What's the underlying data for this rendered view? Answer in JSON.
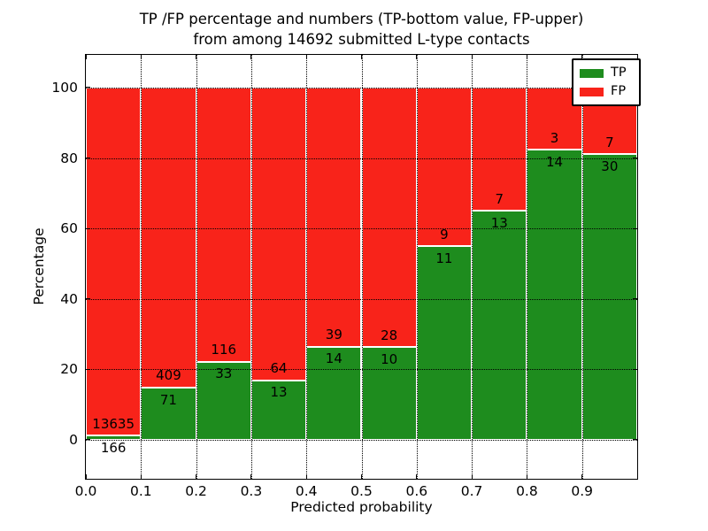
{
  "chart_data": {
    "type": "bar",
    "stacked": true,
    "title_line1": "TP /FP percentage and numbers (TP-bottom value, FP-upper)",
    "title_line2": "from among 14692 submitted L-type contacts",
    "xlabel": "Predicted probability",
    "ylabel": "Percentage",
    "total_contacts": 14692,
    "xlim": [
      0.0,
      1.0
    ],
    "ylim": [
      -11.1,
      109.3
    ],
    "xticks": [
      {
        "value": 0.0,
        "label": "0.0"
      },
      {
        "value": 0.1,
        "label": "0.1"
      },
      {
        "value": 0.2,
        "label": "0.2"
      },
      {
        "value": 0.3,
        "label": "0.3"
      },
      {
        "value": 0.4,
        "label": "0.4"
      },
      {
        "value": 0.5,
        "label": "0.5"
      },
      {
        "value": 0.6,
        "label": "0.6"
      },
      {
        "value": 0.7,
        "label": "0.7"
      },
      {
        "value": 0.8,
        "label": "0.8"
      },
      {
        "value": 0.9,
        "label": "0.9"
      }
    ],
    "yticks": [
      {
        "value": 0,
        "label": "0"
      },
      {
        "value": 20,
        "label": "20"
      },
      {
        "value": 40,
        "label": "40"
      },
      {
        "value": 60,
        "label": "60"
      },
      {
        "value": 80,
        "label": "80"
      },
      {
        "value": 100,
        "label": "100"
      }
    ],
    "grid": true,
    "legend": {
      "position": "upper right",
      "entries": [
        {
          "label": "TP",
          "color": "#1e8c1e"
        },
        {
          "label": "FP",
          "color": "#f8231a"
        }
      ]
    },
    "colors": {
      "tp": "#1e8c1e",
      "fp": "#f8231a",
      "bar_edge": "#ffffff"
    },
    "bars": [
      {
        "bin": [
          0.0,
          0.1
        ],
        "tp": 166,
        "fp": 13635,
        "tp_pct": 1.2,
        "fp_pct": 98.8
      },
      {
        "bin": [
          0.1,
          0.2
        ],
        "tp": 71,
        "fp": 409,
        "tp_pct": 14.79,
        "fp_pct": 85.21
      },
      {
        "bin": [
          0.2,
          0.3
        ],
        "tp": 33,
        "fp": 116,
        "tp_pct": 22.15,
        "fp_pct": 77.85
      },
      {
        "bin": [
          0.3,
          0.4
        ],
        "tp": 13,
        "fp": 64,
        "tp_pct": 16.88,
        "fp_pct": 83.12
      },
      {
        "bin": [
          0.4,
          0.5
        ],
        "tp": 14,
        "fp": 39,
        "tp_pct": 26.42,
        "fp_pct": 73.58
      },
      {
        "bin": [
          0.5,
          0.6
        ],
        "tp": 10,
        "fp": 28,
        "tp_pct": 26.32,
        "fp_pct": 73.68
      },
      {
        "bin": [
          0.6,
          0.7
        ],
        "tp": 11,
        "fp": 9,
        "tp_pct": 55.0,
        "fp_pct": 45.0
      },
      {
        "bin": [
          0.7,
          0.8
        ],
        "tp": 13,
        "fp": 7,
        "tp_pct": 65.0,
        "fp_pct": 35.0
      },
      {
        "bin": [
          0.8,
          0.9
        ],
        "tp": 14,
        "fp": 3,
        "tp_pct": 82.35,
        "fp_pct": 17.65
      },
      {
        "bin": [
          0.9,
          1.0
        ],
        "tp": 30,
        "fp": 7,
        "tp_pct": 81.08,
        "fp_pct": 18.92
      }
    ]
  }
}
